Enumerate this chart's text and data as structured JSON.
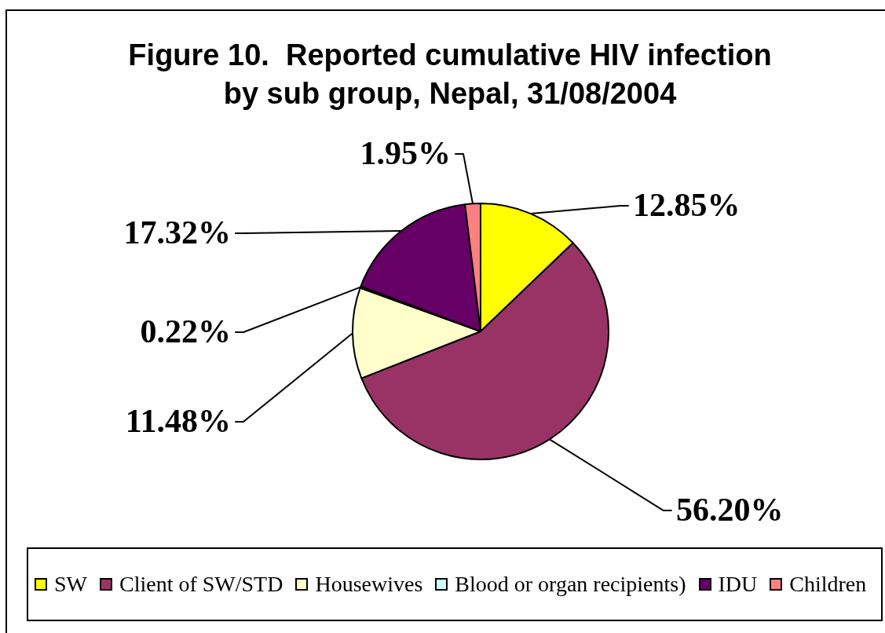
{
  "chart_data": {
    "type": "pie",
    "title": "Figure 10.  Reported cumulative HIV infection by sub group, Nepal, 31/08/2004",
    "categories": [
      "SW",
      "Client of SW/STD",
      "Housewives",
      "Blood or organ recipients)",
      "IDU",
      "Children"
    ],
    "values": [
      12.85,
      56.2,
      11.48,
      0.22,
      17.32,
      1.95
    ],
    "colors": [
      "#ffff00",
      "#993366",
      "#ffffcc",
      "#ccffff",
      "#660066",
      "#ff8080"
    ],
    "value_labels": [
      "12.85%",
      "56.20%",
      "11.48%",
      "0.22%",
      "17.32%",
      "1.95%"
    ],
    "legend": "bottom"
  }
}
